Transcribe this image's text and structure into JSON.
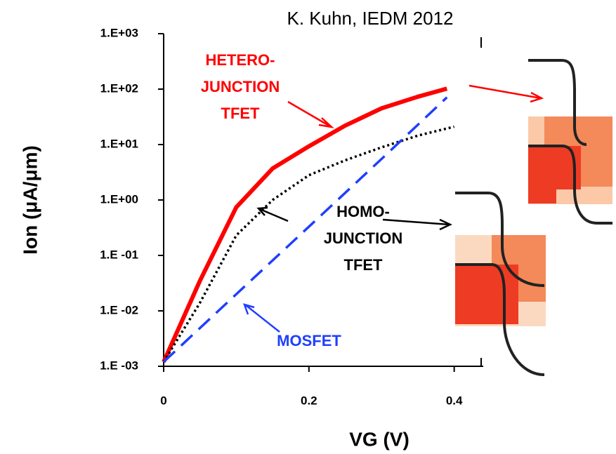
{
  "chart_data": {
    "type": "line",
    "source_note": "K. Kuhn, IEDM 2012",
    "x_label": "VG (V)",
    "y_label": "Ion (μA/μm)",
    "xlim": [
      0,
      0.44
    ],
    "xticks": [
      0,
      0.2,
      0.4
    ],
    "ylim": [
      0.001,
      1000
    ],
    "log_y": true,
    "yticks": [
      {
        "value": 1000,
        "label": "1.E+03"
      },
      {
        "value": 100,
        "label": "1.E+02"
      },
      {
        "value": 10,
        "label": "1.E+01"
      },
      {
        "value": 1,
        "label": "1.E+00"
      },
      {
        "value": 0.1,
        "label": "1.E -01"
      },
      {
        "value": 0.01,
        "label": "1.E -02"
      },
      {
        "value": 0.001,
        "label": "1.E -03"
      }
    ],
    "series": [
      {
        "color": "#ff0000",
        "line_style": "solid",
        "x": [
          0,
          0.05,
          0.1,
          0.15,
          0.2,
          0.25,
          0.3,
          0.35,
          0.39
        ],
        "values": [
          0.0012,
          0.035,
          0.74,
          3.7,
          9.3,
          22,
          45,
          73,
          102
        ]
      },
      {
        "color": "#000000",
        "line_style": "dotted",
        "x": [
          0,
          0.05,
          0.1,
          0.15,
          0.2,
          0.25,
          0.3,
          0.35,
          0.4
        ],
        "values": [
          0.0012,
          0.014,
          0.23,
          1.0,
          2.8,
          5.2,
          8.9,
          14.5,
          21
        ]
      },
      {
        "color": "#1f3fff",
        "line_style": "dashed",
        "x": [
          0,
          0.1,
          0.2,
          0.3,
          0.39
        ],
        "values": [
          0.0012,
          0.02,
          0.33,
          5.5,
          71
        ]
      }
    ],
    "annotations": [
      {
        "lines": [
          "HETERO-",
          "JUNCTION",
          "TFET"
        ],
        "color": "#ff0000"
      },
      {
        "lines": [
          "HOMO-",
          "JUNCTION",
          "TFET"
        ],
        "color": "#000000"
      },
      {
        "lines": [
          "MOSFET"
        ],
        "color": "#1f3fff"
      }
    ]
  }
}
